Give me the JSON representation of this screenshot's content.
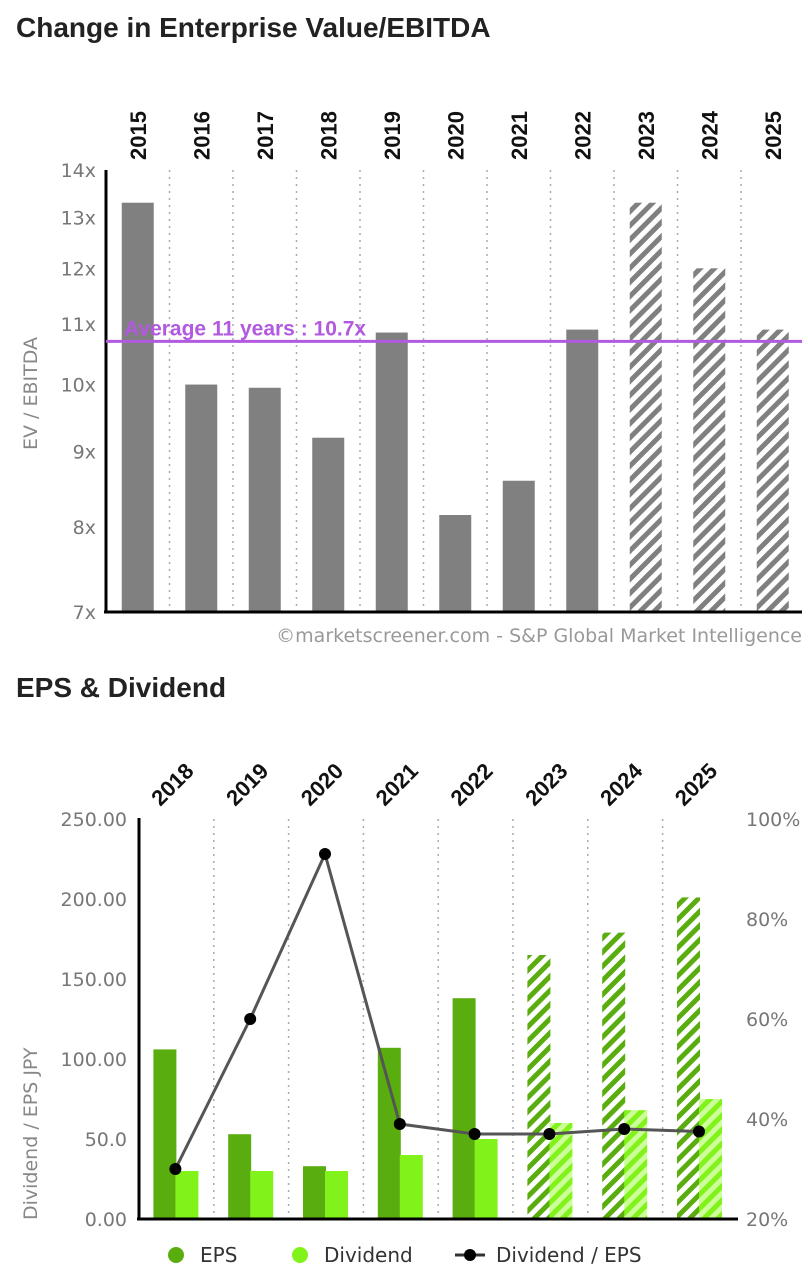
{
  "chart_data": [
    {
      "type": "bar",
      "title": "Change in Enterprise Value/EBITDA",
      "ylabel": "EV / EBITDA",
      "categories": [
        "2015",
        "2016",
        "2017",
        "2018",
        "2019",
        "2020",
        "2021",
        "2022",
        "2023",
        "2024",
        "2025"
      ],
      "values": [
        13.3,
        10.0,
        9.95,
        9.2,
        10.85,
        8.15,
        8.6,
        10.9,
        13.3,
        12.0,
        10.9
      ],
      "forecast_from": "2023",
      "ylim": [
        7,
        14
      ],
      "y_ticks": [
        {
          "value": 14,
          "label": "14x"
        },
        {
          "value": 13,
          "label": "13x"
        },
        {
          "value": 12,
          "label": "12x"
        },
        {
          "value": 11,
          "label": "11x"
        },
        {
          "value": 10,
          "label": "10x"
        },
        {
          "value": 9,
          "label": "9x"
        },
        {
          "value": 8,
          "label": "8x"
        },
        {
          "value": 7,
          "label": "7x"
        }
      ],
      "average": {
        "value": 10.7,
        "label": "Average 11 years : 10.7x"
      },
      "credit": "©marketscreener.com - S&P Global Market Intelligence",
      "colors": {
        "bar": "#808080",
        "average": "#b259e0"
      }
    },
    {
      "type": "bar",
      "title": "EPS & Dividend",
      "ylabel": "Dividend / EPS JPY",
      "categories": [
        "2018",
        "2019",
        "2020",
        "2021",
        "2022",
        "2023",
        "2024",
        "2025"
      ],
      "forecast_from": "2023",
      "series": [
        {
          "name": "EPS",
          "values": [
            106,
            53,
            33,
            107,
            138,
            165,
            179,
            201
          ],
          "color": "#5aad0f"
        },
        {
          "name": "Dividend",
          "values": [
            30,
            30,
            30,
            40,
            50,
            60,
            68,
            75
          ],
          "color": "#82f21b"
        },
        {
          "name": "Dividend / EPS",
          "axis": "right",
          "values": [
            30,
            60,
            93,
            39,
            37,
            37,
            38,
            37.5
          ],
          "color": "#555555"
        }
      ],
      "ylim": [
        0,
        250
      ],
      "y2lim": [
        20,
        100
      ],
      "y_ticks": [
        {
          "value": 250,
          "label": "250.00"
        },
        {
          "value": 200,
          "label": "200.00"
        },
        {
          "value": 150,
          "label": "150.00"
        },
        {
          "value": 100,
          "label": "100.00"
        },
        {
          "value": 50,
          "label": "50.0"
        },
        {
          "value": 0,
          "label": "0.00"
        }
      ],
      "y2_ticks": [
        {
          "value": 100,
          "label": "100%"
        },
        {
          "value": 80,
          "label": "80%"
        },
        {
          "value": 60,
          "label": "60%"
        },
        {
          "value": 40,
          "label": "40%"
        },
        {
          "value": 20,
          "label": "20%"
        }
      ],
      "legend": [
        "EPS",
        "Dividend",
        "Dividend / EPS"
      ]
    }
  ]
}
